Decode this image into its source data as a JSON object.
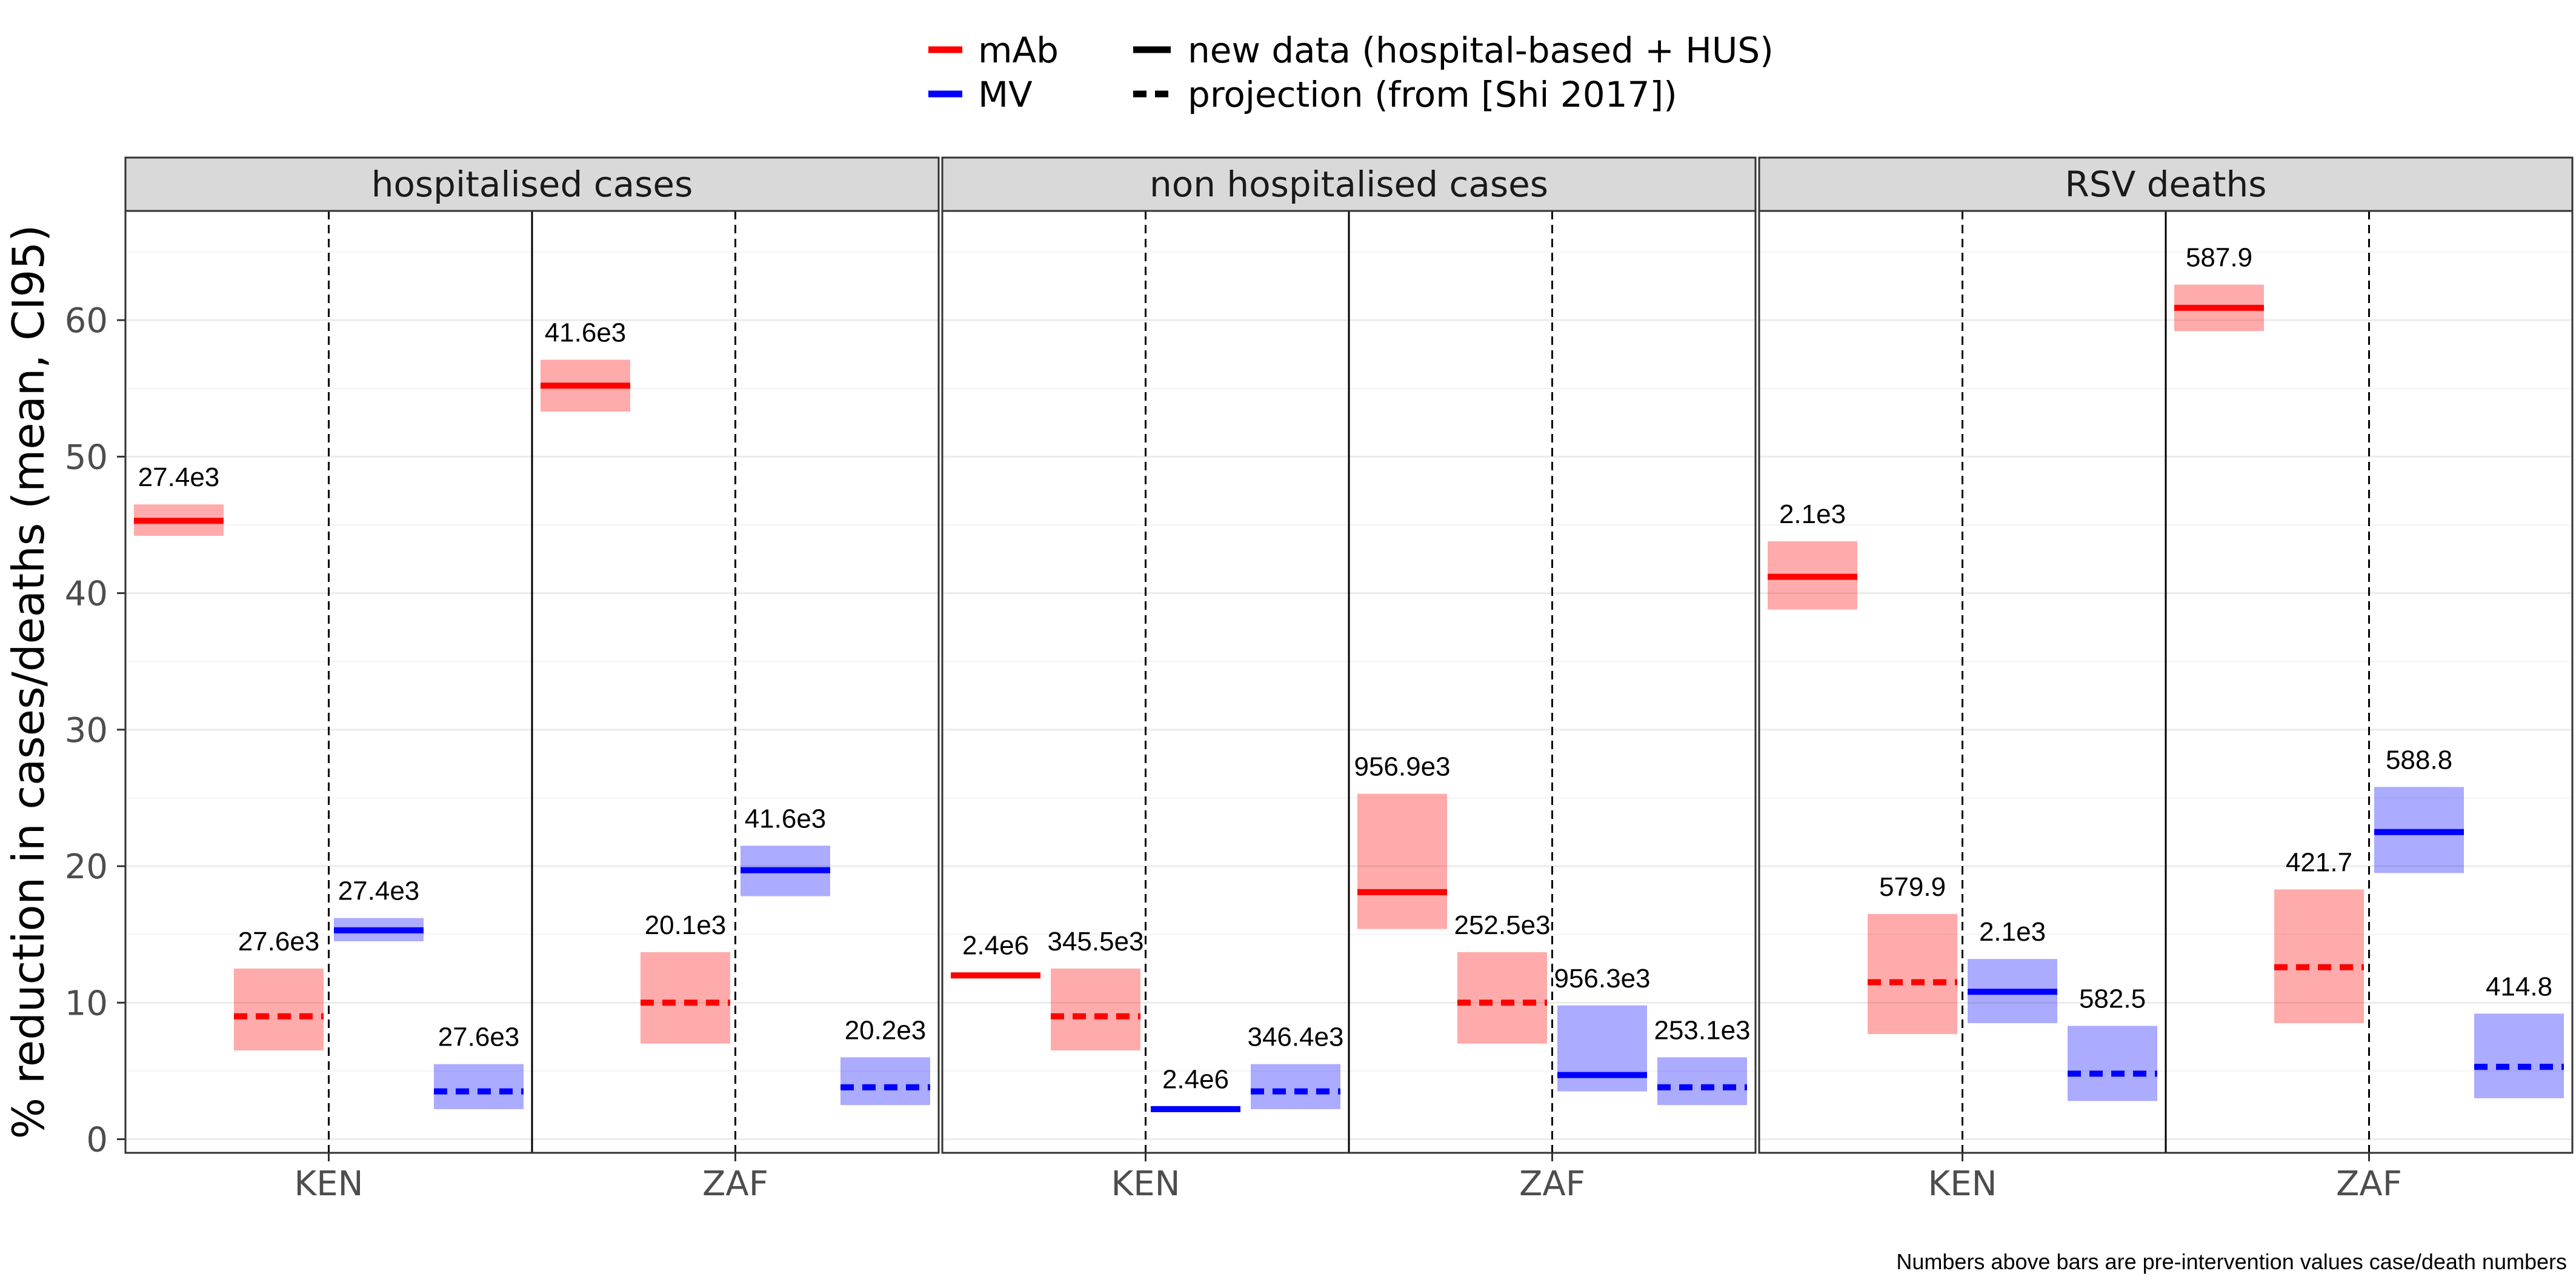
{
  "chart_data": {
    "type": "bar",
    "ylabel": "% reduction in cases/deaths (mean, CI95)",
    "ylim": [
      -1,
      68
    ],
    "yticks": [
      0,
      10,
      20,
      30,
      40,
      50,
      60
    ],
    "grid": true,
    "legend": {
      "placement": "top-center",
      "color_entries": [
        {
          "label": "mAb",
          "color": "#ff0000"
        },
        {
          "label": "MV",
          "color": "#0000ff"
        }
      ],
      "linetype_entries": [
        {
          "label": "new data (hospital-based + HUS)",
          "dash": "solid"
        },
        {
          "label": "projection (from [Shi 2017])",
          "dash": "dashed"
        }
      ]
    },
    "caption": "Numbers above bars are pre-intervention values case/death numbers",
    "categories": [
      "KEN",
      "ZAF"
    ],
    "panels": [
      {
        "title": "hospitalised cases",
        "series": [
          {
            "category": "KEN",
            "product": "mAb",
            "data": "new",
            "mean": 45.3,
            "lo": 44.2,
            "hi": 46.5,
            "label": "27.4e3"
          },
          {
            "category": "KEN",
            "product": "mAb",
            "data": "projection",
            "mean": 9.0,
            "lo": 6.5,
            "hi": 12.5,
            "label": "27.6e3"
          },
          {
            "category": "KEN",
            "product": "MV",
            "data": "new",
            "mean": 15.3,
            "lo": 14.5,
            "hi": 16.2,
            "label": "27.4e3"
          },
          {
            "category": "KEN",
            "product": "MV",
            "data": "projection",
            "mean": 3.5,
            "lo": 2.2,
            "hi": 5.5,
            "label": "27.6e3"
          },
          {
            "category": "ZAF",
            "product": "mAb",
            "data": "new",
            "mean": 55.2,
            "lo": 53.3,
            "hi": 57.1,
            "label": "41.6e3"
          },
          {
            "category": "ZAF",
            "product": "mAb",
            "data": "projection",
            "mean": 10.0,
            "lo": 7.0,
            "hi": 13.7,
            "label": "20.1e3"
          },
          {
            "category": "ZAF",
            "product": "MV",
            "data": "new",
            "mean": 19.7,
            "lo": 17.8,
            "hi": 21.5,
            "label": "41.6e3"
          },
          {
            "category": "ZAF",
            "product": "MV",
            "data": "projection",
            "mean": 3.8,
            "lo": 2.5,
            "hi": 6.0,
            "label": "20.2e3"
          }
        ]
      },
      {
        "title": "non hospitalised cases",
        "series": [
          {
            "category": "KEN",
            "product": "mAb",
            "data": "new",
            "mean": 12.0,
            "lo": 11.8,
            "hi": 12.2,
            "label": "2.4e6"
          },
          {
            "category": "KEN",
            "product": "mAb",
            "data": "projection",
            "mean": 9.0,
            "lo": 6.5,
            "hi": 12.5,
            "label": "345.5e3"
          },
          {
            "category": "KEN",
            "product": "MV",
            "data": "new",
            "mean": 2.2,
            "lo": 2.0,
            "hi": 2.4,
            "label": "2.4e6"
          },
          {
            "category": "KEN",
            "product": "MV",
            "data": "projection",
            "mean": 3.5,
            "lo": 2.2,
            "hi": 5.5,
            "label": "346.4e3"
          },
          {
            "category": "ZAF",
            "product": "mAb",
            "data": "new",
            "mean": 18.1,
            "lo": 15.4,
            "hi": 25.3,
            "label": "956.9e3"
          },
          {
            "category": "ZAF",
            "product": "mAb",
            "data": "projection",
            "mean": 10.0,
            "lo": 7.0,
            "hi": 13.7,
            "label": "252.5e3"
          },
          {
            "category": "ZAF",
            "product": "MV",
            "data": "new",
            "mean": 4.7,
            "lo": 3.5,
            "hi": 9.8,
            "label": "956.3e3"
          },
          {
            "category": "ZAF",
            "product": "MV",
            "data": "projection",
            "mean": 3.8,
            "lo": 2.5,
            "hi": 6.0,
            "label": "253.1e3"
          }
        ]
      },
      {
        "title": "RSV deaths",
        "series": [
          {
            "category": "KEN",
            "product": "mAb",
            "data": "new",
            "mean": 41.2,
            "lo": 38.8,
            "hi": 43.8,
            "label": "2.1e3"
          },
          {
            "category": "KEN",
            "product": "mAb",
            "data": "projection",
            "mean": 11.5,
            "lo": 7.7,
            "hi": 16.5,
            "label": "579.9"
          },
          {
            "category": "KEN",
            "product": "MV",
            "data": "new",
            "mean": 10.8,
            "lo": 8.5,
            "hi": 13.2,
            "label": "2.1e3"
          },
          {
            "category": "KEN",
            "product": "MV",
            "data": "projection",
            "mean": 4.8,
            "lo": 2.8,
            "hi": 8.3,
            "label": "582.5"
          },
          {
            "category": "ZAF",
            "product": "mAb",
            "data": "new",
            "mean": 60.9,
            "lo": 59.2,
            "hi": 62.6,
            "label": "587.9"
          },
          {
            "category": "ZAF",
            "product": "mAb",
            "data": "projection",
            "mean": 12.6,
            "lo": 8.5,
            "hi": 18.3,
            "label": "421.7"
          },
          {
            "category": "ZAF",
            "product": "MV",
            "data": "new",
            "mean": 22.5,
            "lo": 19.5,
            "hi": 25.8,
            "label": "588.8"
          },
          {
            "category": "ZAF",
            "product": "MV",
            "data": "projection",
            "mean": 5.3,
            "lo": 3.0,
            "hi": 9.2,
            "label": "414.8"
          }
        ]
      }
    ]
  }
}
